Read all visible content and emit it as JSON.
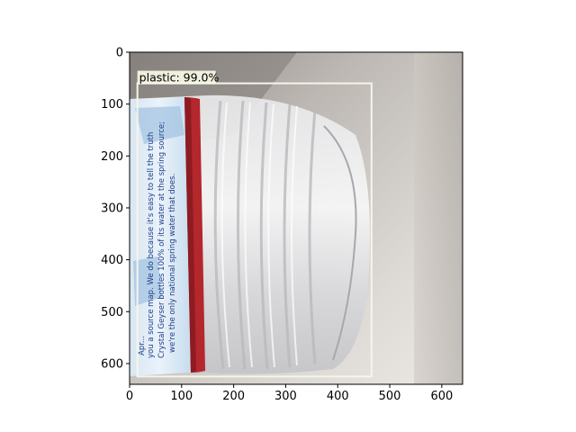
{
  "chart_data": {
    "type": "image",
    "image_extent": {
      "x": [
        0,
        640
      ],
      "y": [
        640,
        0
      ]
    },
    "x_ticks": [
      0,
      100,
      200,
      300,
      400,
      500,
      600
    ],
    "y_ticks": [
      0,
      100,
      200,
      300,
      400,
      500,
      600
    ],
    "x_tick_labels": [
      "0",
      "100",
      "200",
      "300",
      "400",
      "500",
      "600"
    ],
    "y_tick_labels": [
      "0",
      "100",
      "200",
      "300",
      "400",
      "500",
      "600"
    ],
    "image_content": "plastic-water-bottle-photo",
    "detections": [
      {
        "label": "plastic: 99.0%",
        "class": "plastic",
        "confidence": 99.0,
        "box": {
          "x_min": 15,
          "y_min": 60,
          "x_max": 465,
          "y_max": 625
        }
      }
    ],
    "bottle_label_text": [
      "Apr...",
      "you a source map.  We do because it's easy to tell the truth",
      "Crystal Geyser bottles 100% of its water at the spring source;",
      "we're the only national spring water that does."
    ],
    "colors": {
      "box": "#f5f5e8",
      "label_bg": "#fbfbe8",
      "background": "#c8c4bf",
      "cap_ring": "#b3272d"
    }
  }
}
